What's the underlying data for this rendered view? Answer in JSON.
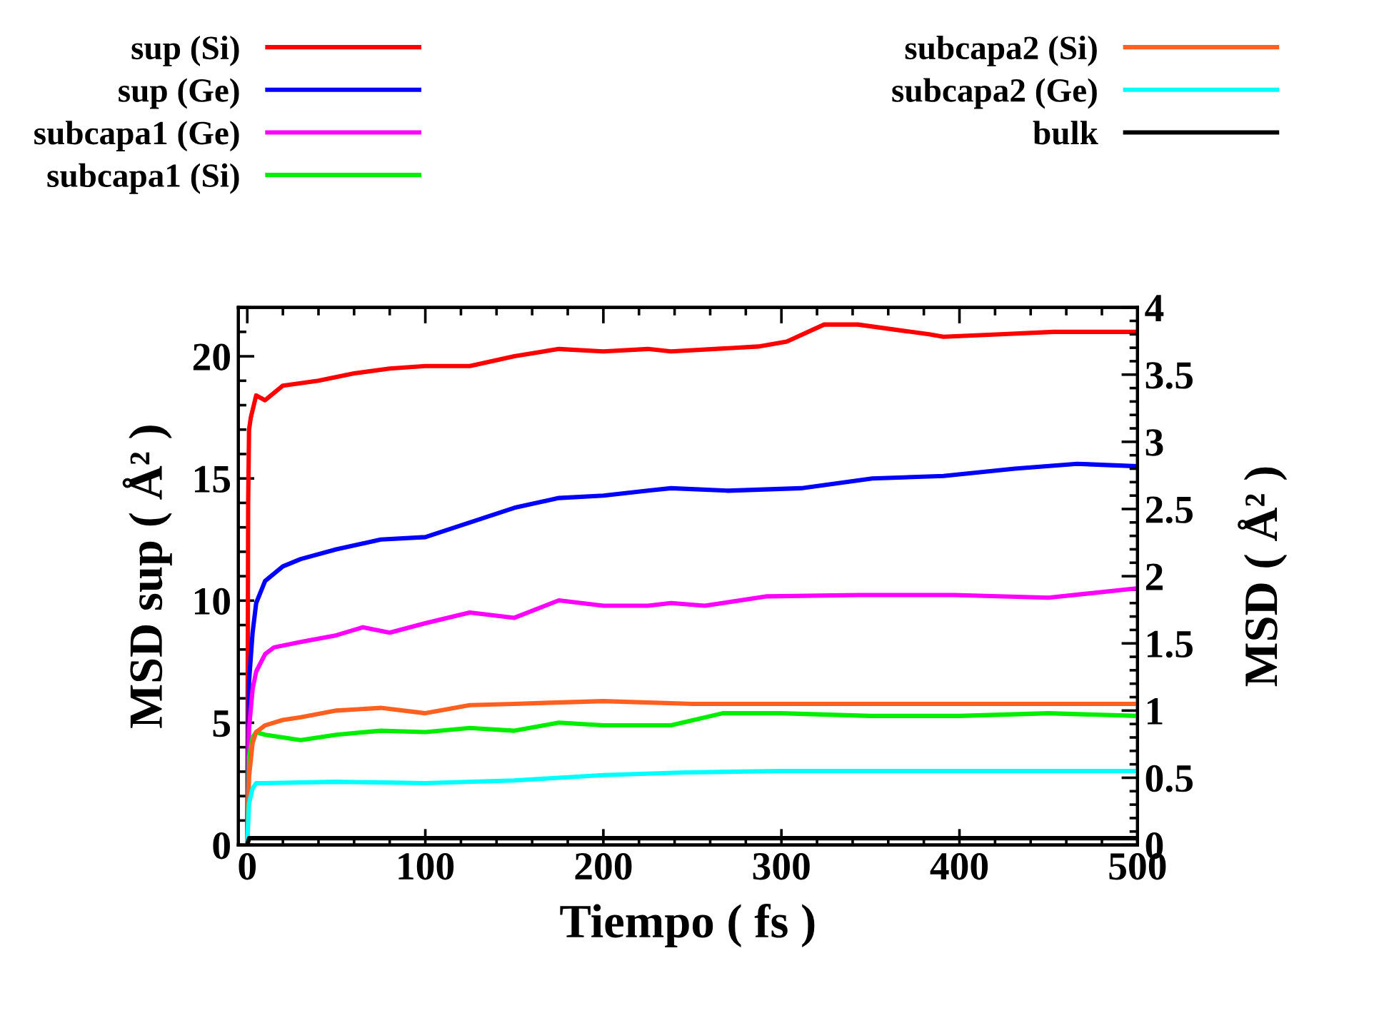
{
  "chart_data": {
    "type": "line",
    "xlabel": "Tiempo ( fs )",
    "ylabel": "MSD sup ( Å² )",
    "y2label": "MSD ( Å² )",
    "xlim": [
      -5,
      500
    ],
    "xticks": [
      0,
      100,
      200,
      300,
      400,
      500
    ],
    "ylim": [
      0,
      22
    ],
    "yticks": [
      0,
      5,
      10,
      15,
      20
    ],
    "y2lim": [
      0,
      4
    ],
    "y2ticks": [
      0,
      0.5,
      1,
      1.5,
      2,
      2.5,
      3,
      3.5,
      4
    ],
    "legend": "top",
    "grid": false,
    "series": [
      {
        "name": "sup (Si)",
        "color": "#ff0000",
        "x": [
          0,
          0.5,
          1,
          2,
          5,
          10,
          20,
          40,
          60,
          80,
          100,
          125,
          150,
          175,
          200,
          225,
          238,
          287,
          303,
          324,
          343,
          383,
          391,
          423,
          453,
          463,
          500
        ],
        "values": [
          0,
          14,
          17,
          17.5,
          18.4,
          18.2,
          18.8,
          19.0,
          19.3,
          19.5,
          19.6,
          19.6,
          20.0,
          20.3,
          20.2,
          20.3,
          20.2,
          20.4,
          20.6,
          21.3,
          21.3,
          20.9,
          20.8,
          20.9,
          21.0,
          21.0,
          21.0
        ]
      },
      {
        "name": "sup (Ge)",
        "color": "#0000ff",
        "x": [
          0,
          1,
          3,
          5,
          10,
          20,
          30,
          50,
          75,
          100,
          125,
          150,
          175,
          200,
          225,
          238,
          270,
          311,
          351,
          391,
          431,
          466,
          500
        ],
        "values": [
          0,
          6.7,
          8.7,
          9.9,
          10.8,
          11.4,
          11.7,
          12.1,
          12.5,
          12.6,
          13.2,
          13.8,
          14.2,
          14.3,
          14.5,
          14.6,
          14.5,
          14.6,
          15.0,
          15.1,
          15.4,
          15.6,
          15.5
        ]
      },
      {
        "name": "subcapa1 (Ge)",
        "color": "#ff00ff",
        "axis": "y2",
        "x": [
          0,
          1,
          3,
          5,
          10,
          15,
          30,
          50,
          65,
          80,
          100,
          125,
          150,
          175,
          200,
          225,
          238,
          257,
          292,
          344,
          397,
          450,
          500
        ],
        "values": [
          0,
          0.87,
          1.16,
          1.29,
          1.42,
          1.47,
          1.51,
          1.56,
          1.62,
          1.58,
          1.65,
          1.73,
          1.69,
          1.82,
          1.78,
          1.78,
          1.8,
          1.78,
          1.85,
          1.86,
          1.86,
          1.84,
          1.91
        ]
      },
      {
        "name": "subcapa1 (Si)",
        "color": "#00ee00",
        "axis": "y2",
        "x": [
          0,
          1,
          3,
          5,
          10,
          20,
          30,
          50,
          75,
          100,
          125,
          150,
          175,
          200,
          238,
          267,
          300,
          350,
          400,
          450,
          500
        ],
        "values": [
          0,
          0.65,
          0.8,
          0.84,
          0.82,
          0.8,
          0.78,
          0.82,
          0.85,
          0.84,
          0.87,
          0.85,
          0.91,
          0.89,
          0.89,
          0.98,
          0.98,
          0.96,
          0.96,
          0.98,
          0.96
        ]
      },
      {
        "name": "subcapa2 (Si)",
        "color": "#ff6020",
        "axis": "y2",
        "x": [
          0,
          1,
          3,
          5,
          10,
          20,
          30,
          50,
          75,
          100,
          125,
          150,
          200,
          250,
          300,
          350,
          400,
          450,
          500
        ],
        "values": [
          0,
          0.51,
          0.76,
          0.84,
          0.89,
          0.93,
          0.95,
          1.0,
          1.02,
          0.98,
          1.04,
          1.05,
          1.07,
          1.05,
          1.05,
          1.05,
          1.05,
          1.05,
          1.05
        ]
      },
      {
        "name": "subcapa2 (Ge)",
        "color": "#00ffff",
        "axis": "y2",
        "x": [
          0,
          1,
          3,
          5,
          10,
          50,
          100,
          150,
          200,
          246,
          300,
          350,
          400,
          450,
          500
        ],
        "values": [
          0,
          0.31,
          0.42,
          0.46,
          0.46,
          0.47,
          0.46,
          0.48,
          0.52,
          0.54,
          0.55,
          0.55,
          0.55,
          0.55,
          0.55
        ]
      },
      {
        "name": "bulk",
        "color": "#000000",
        "axis": "y2",
        "x": [
          0,
          1,
          100,
          200,
          300,
          400,
          500
        ],
        "values": [
          0,
          0.05,
          0.05,
          0.05,
          0.05,
          0.05,
          0.05
        ]
      }
    ]
  }
}
